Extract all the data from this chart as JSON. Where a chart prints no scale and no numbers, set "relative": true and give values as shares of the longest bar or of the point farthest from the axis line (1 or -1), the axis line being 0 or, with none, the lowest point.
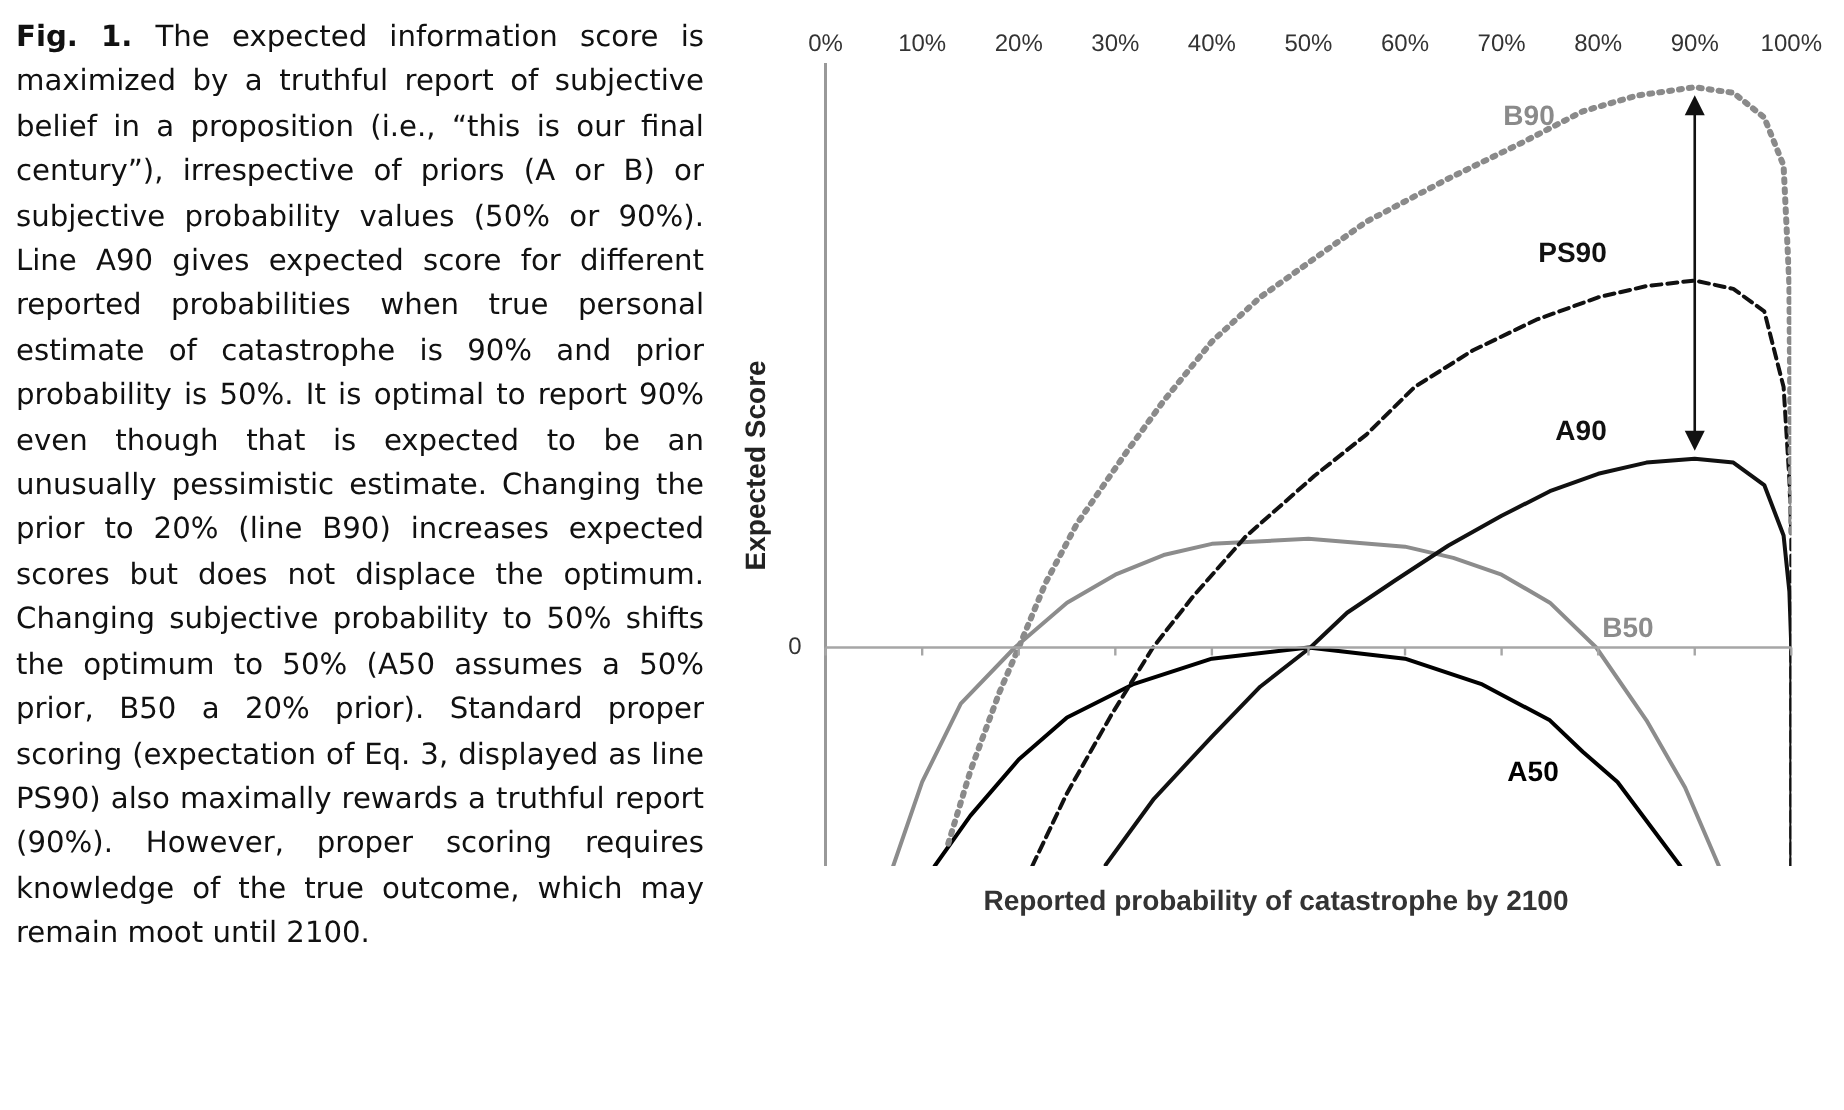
{
  "chart_data": {
    "type": "line",
    "relative": true,
    "xlabel": "Reported probability of catastrophe by 2100",
    "ylabel": "Expected Score",
    "xlim": [
      0,
      100
    ],
    "xticks": [
      {
        "value": 0,
        "label": "0%"
      },
      {
        "value": 10,
        "label": "10%"
      },
      {
        "value": 20,
        "label": "20%"
      },
      {
        "value": 30,
        "label": "30%"
      },
      {
        "value": 40,
        "label": "40%"
      },
      {
        "value": 50,
        "label": "50%"
      },
      {
        "value": 60,
        "label": "60%"
      },
      {
        "value": 70,
        "label": "70%"
      },
      {
        "value": 80,
        "label": "80%"
      },
      {
        "value": 90,
        "label": "90%"
      },
      {
        "value": 100,
        "label": "100%"
      }
    ],
    "grid": false,
    "legend": false,
    "marker": "none",
    "ref_lines": [
      {
        "axis": "y",
        "value": 0,
        "label": "0",
        "color": "#a6a6a6"
      }
    ],
    "series": [
      {
        "name": "B90",
        "color": "#8a8a8a",
        "line_style": "dotted",
        "x": [
          12.7,
          15,
          18,
          20,
          22.8,
          26,
          31,
          35,
          40,
          45,
          50.6,
          56,
          64.5,
          72,
          78.4,
          84,
          90,
          94,
          97.2,
          99.2,
          99.8,
          100
        ],
        "values": [
          -0.35,
          -0.22,
          -0.08,
          0,
          0.116,
          0.22,
          0.345,
          0.44,
          0.546,
          0.625,
          0.694,
          0.76,
          0.837,
          0.9,
          0.957,
          0.985,
          1.0,
          0.99,
          0.946,
          0.86,
          0.647,
          0.2
        ]
      },
      {
        "name": "PS90",
        "color": "#111111",
        "line_style": "dashed",
        "x": [
          21.4,
          25,
          29.6,
          33.9,
          38,
          43.5,
          50.6,
          56,
          61,
          67,
          73.6,
          80,
          85,
          90,
          94,
          97.2,
          99.2,
          99.8,
          100,
          100
        ],
        "values": [
          -0.39,
          -0.26,
          -0.12,
          0,
          0.09,
          0.198,
          0.306,
          0.38,
          0.465,
          0.53,
          0.585,
          0.625,
          0.645,
          0.655,
          0.64,
          0.6,
          0.465,
          0.3,
          0.2,
          -0.39
        ]
      },
      {
        "name": "A90",
        "color": "#111111",
        "line_style": "solid",
        "x": [
          29,
          34,
          40,
          45,
          50.2,
          54,
          59,
          64.5,
          70,
          75,
          80,
          85,
          90,
          94,
          97.2,
          99.2,
          99.8,
          100,
          100
        ],
        "values": [
          -0.388,
          -0.27,
          -0.159,
          -0.07,
          0,
          0.062,
          0.12,
          0.182,
          0.235,
          0.279,
          0.31,
          0.33,
          0.337,
          0.33,
          0.29,
          0.2,
          0.1,
          0,
          -0.39
        ]
      },
      {
        "name": "B50",
        "color": "#8c8c8c",
        "line_style": "solid",
        "x": [
          7,
          10,
          14,
          19.6,
          25,
          30,
          35,
          40,
          50,
          60,
          65,
          70,
          75,
          79.8,
          85,
          89,
          92.5
        ],
        "values": [
          -0.39,
          -0.24,
          -0.1,
          0,
          0.08,
          0.13,
          0.165,
          0.185,
          0.194,
          0.18,
          0.16,
          0.13,
          0.08,
          0,
          -0.13,
          -0.25,
          -0.39
        ]
      },
      {
        "name": "A50",
        "color": "#000000",
        "line_style": "solid",
        "x": [
          11.3,
          15,
          20,
          25,
          31.8,
          40,
          50,
          60,
          68,
          75,
          78.4,
          82,
          88.5
        ],
        "values": [
          -0.39,
          -0.3,
          -0.2,
          -0.125,
          -0.066,
          -0.02,
          0,
          -0.02,
          -0.066,
          -0.13,
          -0.186,
          -0.24,
          -0.39
        ]
      }
    ],
    "annotations": [
      "Fig. 1.",
      "The expected information score is maximized by a truthful report of subjective belief in a proposition (i.e., “this is our final century”), irrespective of priors (A or B) or subjective probability values (50% or 90%). Line A90 gives expected score for different reported probabilities when true personal estimate of catastrophe is 90% and prior probability is 50%. It is optimal to report 90% even though that is expected to be an unusually pessimistic estimate. Changing the prior to 20% (line B90) increases expected scores but does not displace the optimum. Changing subjective probability to 50% shifts the optimum to 50% (A50 assumes a 50% prior, B50 a 20% prior). Standard proper scoring (expectation of Eq. 3, displayed as line PS90) also maximally rewards a truthful report (90%). However, proper scoring requires knowledge of the true outcome, which may remain moot until 2100."
    ]
  }
}
